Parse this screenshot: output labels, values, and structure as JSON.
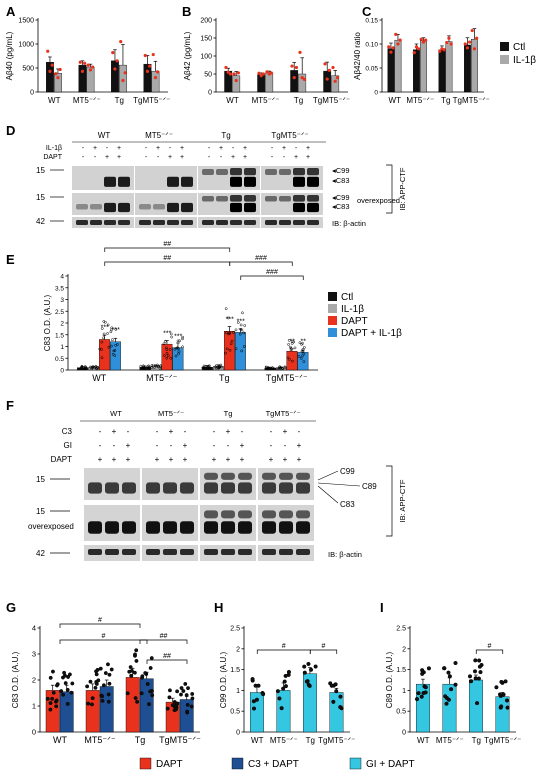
{
  "panel_letters": {
    "A": "A",
    "B": "B",
    "C": "C",
    "D": "D",
    "E": "E",
    "F": "F",
    "G": "G",
    "H": "H",
    "I": "I"
  },
  "colors": {
    "ctl": "#111111",
    "il1b": "#a9a9a9",
    "dapt": "#e8321e",
    "dapt_il1b": "#2f8fd8",
    "c3_dapt": "#1f4f93",
    "gi_dapt": "#35c6e2",
    "dots_red": "#e8321e"
  },
  "legend_top": {
    "items": [
      {
        "label": "Ctl",
        "color": "#111111"
      },
      {
        "label": "IL-1β",
        "color": "#a9a9a9"
      }
    ]
  },
  "legend_E": {
    "items": [
      {
        "label": "Ctl",
        "color": "#111111"
      },
      {
        "label": "IL-1β",
        "color": "#a9a9a9"
      },
      {
        "label": "DAPT",
        "color": "#e8321e"
      },
      {
        "label": "DAPT + IL-1β",
        "color": "#2f8fd8"
      }
    ]
  },
  "legend_bottom": {
    "items": [
      {
        "label": "DAPT",
        "color": "#e8321e"
      },
      {
        "label": "C3 + DAPT",
        "color": "#1f4f93"
      },
      {
        "label": "GI + DAPT",
        "color": "#35c6e2"
      }
    ]
  },
  "blot_D": {
    "groups": [
      "WT",
      "MT5⁻ᐟ⁻",
      "Tg",
      "TgMT5⁻ᐟ⁻"
    ],
    "row_labels": [
      "IL-1β",
      "DAPT"
    ],
    "row_marks": [
      [
        "-",
        "+",
        "-",
        "+"
      ],
      [
        "-",
        "-",
        "+",
        "+"
      ]
    ],
    "mw": [
      "15",
      "15",
      "42"
    ],
    "band_labels": [
      "C99",
      "C83",
      "C99",
      "C83",
      "overexposed"
    ],
    "ib_right": "IB: APP-CTF",
    "ib_actin": "IB: β-actin"
  },
  "blot_F": {
    "groups": [
      "WT",
      "MT5⁻ᐟ⁻",
      "Tg",
      "TgMT5⁻ᐟ⁻"
    ],
    "row_labels": [
      "C3",
      "GI",
      "DAPT"
    ],
    "row_marks": [
      [
        "-",
        "+",
        "-"
      ],
      [
        "-",
        "-",
        "+"
      ],
      [
        "+",
        "+",
        "+"
      ]
    ],
    "mw": [
      "15",
      "15",
      "42"
    ],
    "band_labels": [
      "C99",
      "C89",
      "C83"
    ],
    "overexposed": "overexposed",
    "ib_right": "IB: APP-CTF",
    "ib_actin": "IB: β-actin"
  },
  "chart_data": [
    {
      "panel": "A",
      "type": "bar",
      "ylabel": "Aβ40 (pg/mL)",
      "ylim": [
        0,
        1500
      ],
      "yticks": [
        "0",
        "500",
        "1000",
        "1500"
      ],
      "categories": [
        "WT",
        "MT5⁻ᐟ⁻",
        "Tg",
        "TgMT5⁻ᐟ⁻"
      ],
      "series": [
        {
          "name": "Ctl",
          "values": [
            620,
            560,
            650,
            580
          ],
          "err": [
            110,
            90,
            230,
            180
          ]
        },
        {
          "name": "IL-1β",
          "values": [
            390,
            520,
            560,
            430
          ],
          "err": [
            90,
            60,
            430,
            210
          ]
        }
      ],
      "points": {
        "Ctl": [
          [
            850,
            430,
            560
          ],
          [
            620,
            430,
            600
          ],
          [
            820,
            480,
            650
          ],
          [
            760,
            430,
            540
          ]
        ],
        "IL-1β": [
          [
            380,
            300,
            470
          ],
          [
            560,
            460,
            520
          ],
          [
            1050,
            240,
            400
          ],
          [
            780,
            300,
            420
          ]
        ]
      }
    },
    {
      "panel": "B",
      "type": "bar",
      "ylabel": "Aβ42 (pg/mL)",
      "ylim": [
        0,
        200
      ],
      "yticks": [
        "0",
        "50",
        "100",
        "150",
        "200"
      ],
      "categories": [
        "WT",
        "MT5⁻ᐟ⁻",
        "Tg",
        "TgMT5⁻ᐟ⁻"
      ],
      "series": [
        {
          "name": "Ctl",
          "values": [
            58,
            48,
            60,
            58
          ],
          "err": [
            8,
            5,
            22,
            25
          ]
        },
        {
          "name": "IL-1β",
          "values": [
            45,
            53,
            50,
            45
          ],
          "err": [
            12,
            5,
            45,
            15
          ]
        }
      ],
      "points": {
        "Ctl": [
          [
            68,
            55,
            50
          ],
          [
            52,
            45,
            50
          ],
          [
            72,
            40,
            68
          ],
          [
            78,
            36,
            60
          ]
        ],
        "IL-1β": [
          [
            50,
            32,
            53
          ],
          [
            56,
            50,
            53
          ],
          [
            110,
            40,
            35
          ],
          [
            68,
            30,
            40
          ]
        ]
      }
    },
    {
      "panel": "C",
      "type": "bar",
      "ylabel": "Aβ42/40 ratio",
      "ylim": [
        0,
        0.15
      ],
      "yticks": [
        "0",
        "0.05",
        "0.10",
        "0.15"
      ],
      "categories": [
        "WT",
        "MT5⁻ᐟ⁻",
        "Tg",
        "TgMT5⁻ᐟ⁻"
      ],
      "series": [
        {
          "name": "Ctl",
          "values": [
            0.09,
            0.088,
            0.088,
            0.098
          ],
          "err": [
            0.012,
            0.012,
            0.008,
            0.015
          ]
        },
        {
          "name": "IL-1β",
          "values": [
            0.108,
            0.107,
            0.105,
            0.11
          ],
          "err": [
            0.012,
            0.006,
            0.012,
            0.022
          ]
        }
      ],
      "points": {
        "Ctl": [
          [
            0.094,
            0.083,
            0.092
          ],
          [
            0.082,
            0.094,
            0.09
          ],
          [
            0.085,
            0.09,
            0.088
          ],
          [
            0.1,
            0.092,
            0.104
          ]
        ],
        "IL-1β": [
          [
            0.12,
            0.1,
            0.108
          ],
          [
            0.11,
            0.104,
            0.108
          ],
          [
            0.103,
            0.112,
            0.1
          ],
          [
            0.128,
            0.09,
            0.112
          ]
        ]
      }
    },
    {
      "panel": "E",
      "type": "bar",
      "ylabel": "C83 O.D. (A.U.)",
      "ylim": [
        0,
        4
      ],
      "yticks": [
        "0",
        "0.5",
        "1",
        "1.5",
        "2",
        "2.5",
        "3",
        "3.5",
        "4"
      ],
      "categories": [
        "WT",
        "MT5⁻ᐟ⁻",
        "Tg",
        "TgMT5⁻ᐟ⁻"
      ],
      "series": [
        {
          "name": "Ctl",
          "values": [
            0.1,
            0.12,
            0.12,
            0.08
          ],
          "err": [
            0.05,
            0.05,
            0.06,
            0.04
          ]
        },
        {
          "name": "IL-1β",
          "values": [
            0.1,
            0.14,
            0.15,
            0.09
          ],
          "err": [
            0.05,
            0.06,
            0.07,
            0.04
          ]
        },
        {
          "name": "DAPT",
          "values": [
            1.3,
            1.1,
            1.65,
            0.8
          ],
          "err": [
            0.18,
            0.15,
            0.2,
            0.1
          ]
        },
        {
          "name": "DAPT + IL-1β",
          "values": [
            1.2,
            0.95,
            1.6,
            0.75
          ],
          "err": [
            0.15,
            0.2,
            0.15,
            0.1
          ]
        }
      ],
      "stars": [
        "***",
        "***",
        "***",
        "***",
        "***",
        "***",
        "**",
        "**"
      ],
      "brackets": [
        "##",
        "##",
        "###",
        "###"
      ]
    },
    {
      "panel": "G",
      "type": "bar",
      "ylabel": "C83 O.D. (A.U.)",
      "ylim": [
        0,
        4
      ],
      "yticks": [
        "0",
        "1",
        "2",
        "3",
        "4"
      ],
      "categories": [
        "WT",
        "MT5⁻ᐟ⁻",
        "Tg",
        "TgMT5⁻ᐟ⁻"
      ],
      "series": [
        {
          "name": "DAPT",
          "values": [
            1.6,
            1.6,
            2.1,
            1.15
          ],
          "err": [
            0.2,
            0.25,
            0.35,
            0.15
          ]
        },
        {
          "name": "C3 + DAPT",
          "values": [
            1.55,
            1.75,
            2.05,
            1.25
          ],
          "err": [
            0.25,
            0.25,
            0.25,
            0.12
          ]
        }
      ],
      "brackets": [
        "#",
        "#",
        "##",
        "##"
      ]
    },
    {
      "panel": "H",
      "type": "bar",
      "ylabel": "C99 O.D. (A.U.)",
      "ylim": [
        0,
        2.5
      ],
      "yticks": [
        "0",
        "0.5",
        "1",
        "1.5",
        "2",
        "2.5"
      ],
      "categories": [
        "WT",
        "MT5⁻ᐟ⁻",
        "Tg",
        "TgMT5⁻ᐟ⁻"
      ],
      "series": [
        {
          "name": "GI + DAPT",
          "values": [
            0.95,
            1.0,
            1.4,
            0.95
          ],
          "err": [
            0.15,
            0.18,
            0.15,
            0.1
          ]
        }
      ],
      "brackets": [
        "#",
        "#"
      ]
    },
    {
      "panel": "I",
      "type": "bar",
      "ylabel": "C89 O.D. (A.U.)",
      "ylim": [
        0,
        2.5
      ],
      "yticks": [
        "0",
        "0.5",
        "1",
        "1.5",
        "2",
        "2.5"
      ],
      "categories": [
        "WT",
        "MT5⁻ᐟ⁻",
        "Tg",
        "TgMT5⁻ᐟ⁻"
      ],
      "series": [
        {
          "name": "GI + DAPT",
          "values": [
            1.15,
            1.15,
            1.25,
            0.85
          ],
          "err": [
            0.12,
            0.15,
            0.12,
            0.1
          ]
        }
      ],
      "brackets": [
        "#"
      ]
    }
  ]
}
